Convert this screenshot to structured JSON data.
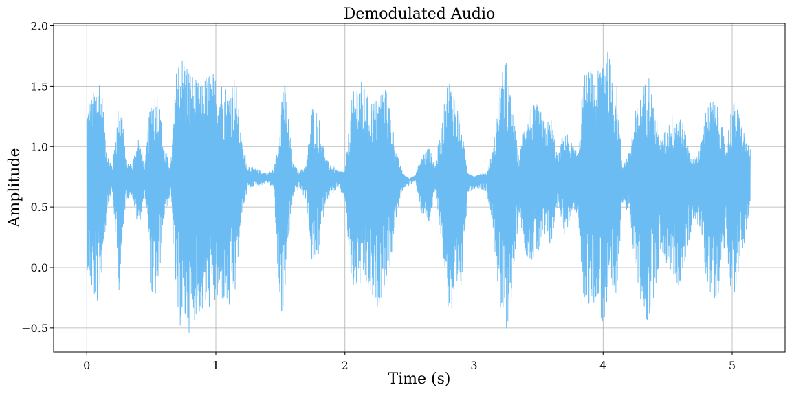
{
  "chart_data": {
    "type": "line",
    "title": "Demodulated Audio",
    "xlabel": "Time (s)",
    "ylabel": "Amplitude",
    "xlim": [
      -0.257,
      5.41
    ],
    "ylim": [
      -0.7,
      2.02
    ],
    "x_ticks": [
      0,
      1,
      2,
      3,
      4,
      5
    ],
    "x_tick_labels": [
      "0",
      "1",
      "2",
      "3",
      "4",
      "5"
    ],
    "y_ticks": [
      -0.5,
      0.0,
      0.5,
      1.0,
      1.5,
      2.0
    ],
    "y_tick_labels": [
      "−0.5",
      "0.0",
      "0.5",
      "1.0",
      "1.5",
      "2.0"
    ],
    "grid": true,
    "color": "#6bbcf2",
    "baseline": 0.75,
    "duration": 5.14,
    "series": [
      {
        "t": [
          0.0,
          0.05,
          0.08,
          0.1,
          0.13,
          0.16,
          0.2,
          0.25,
          0.28,
          0.3,
          0.35,
          0.4,
          0.45,
          0.47,
          0.5,
          0.55,
          0.6,
          0.65,
          0.7,
          0.75,
          0.8,
          0.85,
          0.9,
          0.95,
          1.0,
          1.05,
          1.1,
          1.15,
          1.2,
          1.25,
          1.3,
          1.35,
          1.4,
          1.45,
          1.48,
          1.52,
          1.55,
          1.6,
          1.65,
          1.7,
          1.75,
          1.8,
          1.85,
          1.9,
          1.95,
          2.0,
          2.05,
          2.1,
          2.15,
          2.2,
          2.25,
          2.3,
          2.35,
          2.4,
          2.45,
          2.5,
          2.55,
          2.6,
          2.65,
          2.7,
          2.75,
          2.8,
          2.85,
          2.9,
          2.95,
          3.0,
          3.05,
          3.1,
          3.15,
          3.2,
          3.25,
          3.3,
          3.35,
          3.4,
          3.45,
          3.5,
          3.55,
          3.6,
          3.65,
          3.7,
          3.75,
          3.8,
          3.85,
          3.9,
          3.95,
          4.0,
          4.05,
          4.1,
          4.15,
          4.2,
          4.25,
          4.3,
          4.35,
          4.4,
          4.45,
          4.5,
          4.55,
          4.6,
          4.65,
          4.7,
          4.75,
          4.8,
          4.85,
          4.9,
          4.95,
          5.0,
          5.05,
          5.1,
          5.14
        ],
        "upper": [
          1.35,
          1.45,
          1.6,
          1.62,
          1.35,
          0.95,
          0.85,
          1.4,
          1.3,
          0.9,
          0.85,
          1.1,
          0.85,
          1.1,
          1.45,
          1.5,
          1.0,
          0.85,
          1.75,
          1.78,
          1.65,
          1.55,
          1.55,
          1.65,
          1.6,
          1.55,
          1.5,
          1.62,
          1.05,
          0.85,
          0.82,
          0.8,
          0.78,
          0.82,
          1.0,
          1.65,
          1.4,
          0.85,
          0.8,
          0.85,
          1.4,
          1.25,
          0.9,
          0.85,
          0.8,
          0.8,
          1.38,
          1.6,
          1.5,
          1.4,
          1.4,
          1.55,
          1.35,
          0.95,
          0.78,
          0.72,
          0.78,
          0.95,
          1.0,
          0.85,
          1.2,
          1.6,
          1.5,
          1.2,
          0.8,
          0.75,
          0.78,
          0.78,
          1.0,
          1.55,
          1.72,
          1.3,
          0.9,
          1.3,
          1.35,
          1.35,
          1.2,
          1.25,
          0.9,
          1.2,
          1.05,
          0.95,
          1.6,
          1.65,
          1.55,
          1.92,
          1.75,
          1.6,
          0.85,
          0.95,
          1.3,
          1.45,
          1.65,
          1.3,
          1.05,
          1.2,
          1.3,
          1.3,
          1.05,
          0.9,
          1.0,
          1.35,
          1.4,
          1.3,
          1.0,
          1.4,
          1.3,
          1.1,
          0.98
        ],
        "lower": [
          0.0,
          -0.3,
          -0.32,
          -0.25,
          0.1,
          0.5,
          0.6,
          -0.2,
          0.15,
          0.55,
          0.6,
          0.3,
          0.6,
          0.35,
          -0.3,
          -0.25,
          0.4,
          0.6,
          -0.5,
          -0.5,
          -0.55,
          -0.4,
          -0.4,
          -0.35,
          -0.35,
          -0.3,
          -0.4,
          -0.25,
          0.4,
          0.65,
          0.67,
          0.68,
          0.7,
          0.65,
          -0.1,
          -0.5,
          0.05,
          0.6,
          0.65,
          0.55,
          -0.05,
          0.1,
          0.55,
          0.6,
          0.65,
          0.55,
          -0.2,
          -0.2,
          -0.15,
          -0.3,
          -0.35,
          -0.2,
          0.0,
          0.4,
          0.65,
          0.68,
          0.7,
          0.4,
          0.35,
          0.6,
          0.2,
          -0.35,
          -0.5,
          -0.25,
          0.6,
          0.65,
          0.65,
          0.62,
          0.3,
          -0.45,
          -0.55,
          -0.2,
          0.45,
          0.1,
          0.05,
          0.1,
          0.2,
          0.15,
          0.55,
          0.25,
          0.4,
          0.45,
          -0.3,
          -0.35,
          -0.25,
          -0.52,
          -0.4,
          -0.3,
          0.55,
          0.4,
          0.0,
          -0.4,
          -0.5,
          -0.2,
          0.1,
          0.0,
          -0.1,
          -0.2,
          0.1,
          0.4,
          0.3,
          -0.1,
          -0.3,
          -0.2,
          0.25,
          -0.3,
          -0.1,
          0.25,
          0.45
        ]
      }
    ]
  }
}
